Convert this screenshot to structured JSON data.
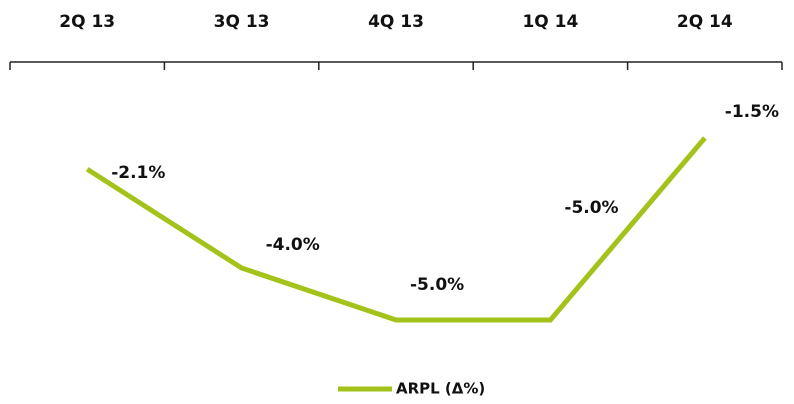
{
  "chart_data": {
    "type": "line",
    "categories": [
      "2Q 13",
      "3Q 13",
      "4Q 13",
      "1Q 14",
      "2Q 14"
    ],
    "series": [
      {
        "name": "ARPL (Δ%)",
        "color": "#a3c21a",
        "values": [
          -2.1,
          -4.0,
          -5.0,
          -5.0,
          -1.5
        ],
        "value_labels": [
          "-2.1%",
          "-4.0%",
          "-5.0%",
          "-5.0%",
          "-1.5%"
        ]
      }
    ],
    "legend": "bottom"
  }
}
